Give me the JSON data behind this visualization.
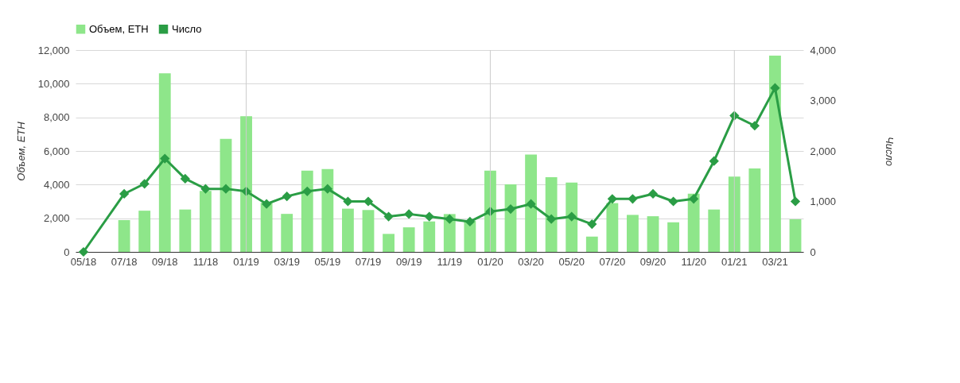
{
  "chart_data": {
    "type": "bar",
    "ylabel": "Объем, ETH",
    "y2label": "Число",
    "categories": [
      "05/18",
      null,
      "07/18",
      null,
      "09/18",
      null,
      "11/18",
      null,
      "01/19",
      null,
      "03/19",
      null,
      "05/19",
      null,
      "07/19",
      null,
      "09/19",
      null,
      "11/19",
      null,
      "01/20",
      null,
      "03/20",
      null,
      "05/20",
      null,
      "07/20",
      null,
      "09/20",
      null,
      "11/20",
      null,
      "01/21",
      null,
      "03/21",
      null
    ],
    "series": [
      {
        "name": "Объем, ETH",
        "color": "#8ee68a",
        "values": [
          null,
          null,
          1890,
          2450,
          10620,
          2520,
          3630,
          6720,
          8070,
          2920,
          2260,
          4830,
          4920,
          2570,
          2490,
          1070,
          1460,
          1810,
          2250,
          1850,
          4830,
          4010,
          5790,
          4440,
          4120,
          910,
          2900,
          2200,
          2120,
          1760,
          3460,
          2520,
          4480,
          4960,
          11670,
          1940
        ]
      },
      {
        "name": "Число",
        "type": "line",
        "axis": "y2",
        "color": "#2a9d45",
        "marker": "diamond",
        "line_style": "solid",
        "values": [
          0,
          null,
          1150,
          1350,
          1850,
          1450,
          1250,
          1250,
          1200,
          950,
          1100,
          1200,
          1250,
          1000,
          1000,
          700,
          750,
          700,
          650,
          600,
          800,
          850,
          950,
          650,
          700,
          550,
          1050,
          1050,
          1150,
          1000,
          1050,
          1800,
          2700,
          2500,
          3250,
          1000
        ]
      }
    ],
    "ylim": [
      0,
      12000
    ],
    "yticks": [
      0,
      {
        "value": 2000,
        "label": "2,000"
      },
      {
        "value": 4000,
        "label": "4,000"
      },
      {
        "value": 6000,
        "label": "6,000"
      },
      {
        "value": 8000,
        "label": "8,000"
      },
      {
        "value": 10000,
        "label": "10,000"
      },
      {
        "value": 12000,
        "label": "12,000"
      }
    ],
    "y2lim": [
      0,
      4000
    ],
    "y2ticks": [
      0,
      {
        "value": 1000,
        "label": "1,000"
      },
      {
        "value": 2000,
        "label": "2,000"
      },
      {
        "value": 3000,
        "label": "3,000"
      },
      {
        "value": 4000,
        "label": "4,000"
      }
    ],
    "grid": "y",
    "legend": "top",
    "ref_lines": [
      {
        "axis": "x",
        "value": "01/19",
        "color": "#cccccc"
      },
      {
        "axis": "x",
        "value": "01/20",
        "color": "#cccccc"
      },
      {
        "axis": "x",
        "value": "01/21",
        "color": "#cccccc"
      }
    ]
  }
}
